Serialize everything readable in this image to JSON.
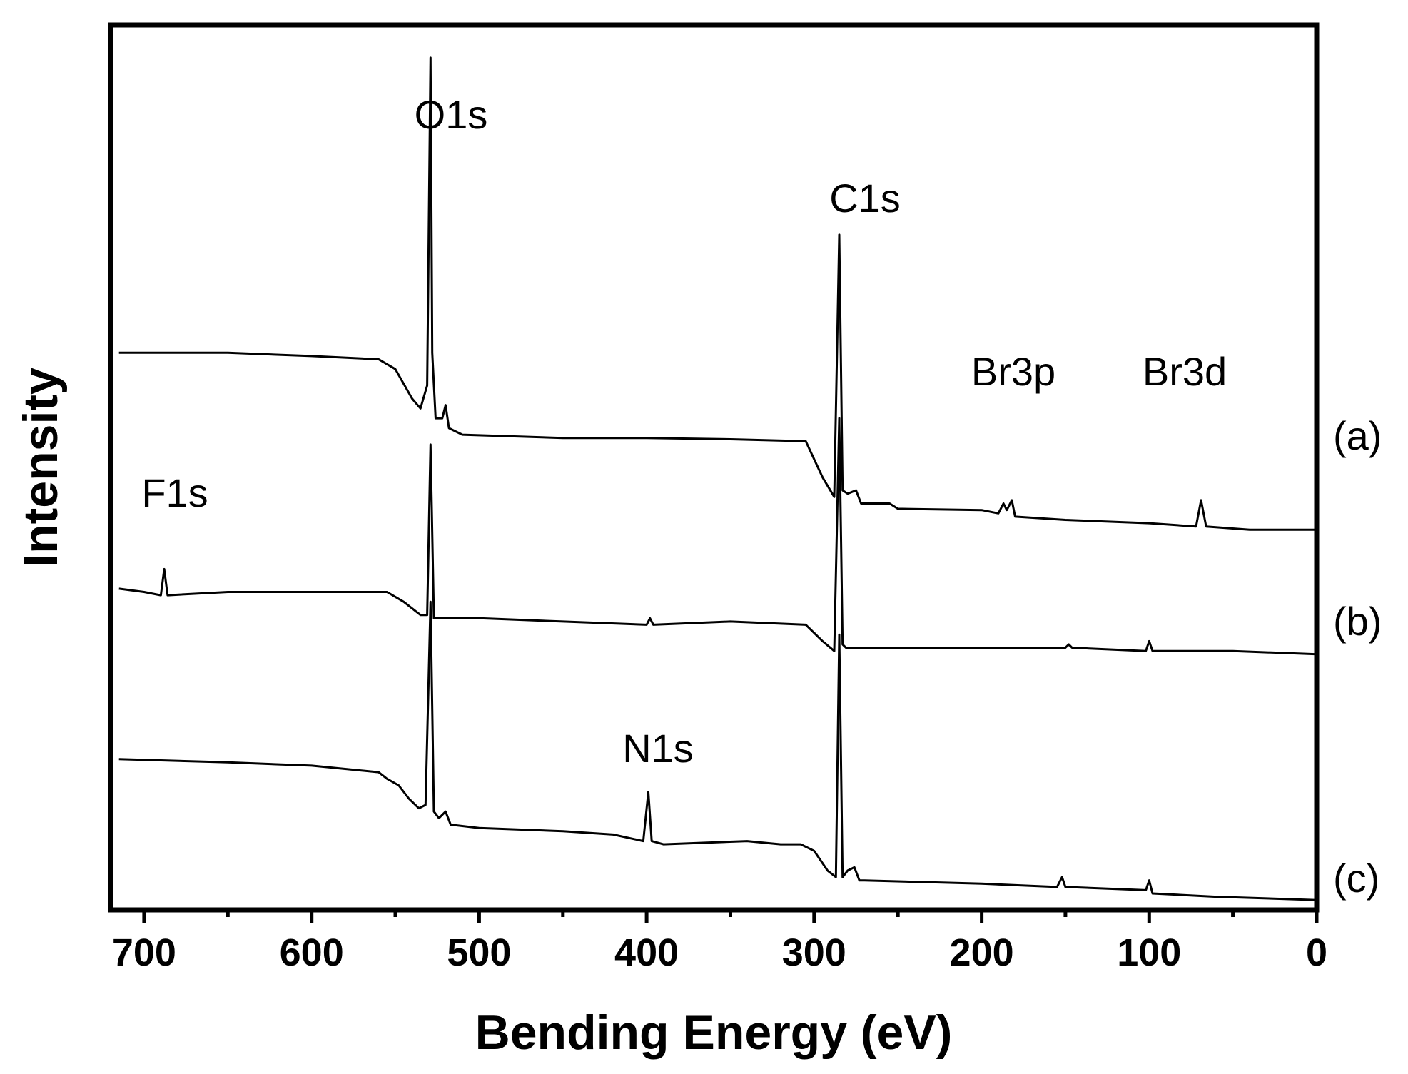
{
  "chart_data": {
    "type": "line",
    "xlabel": "Bending Energy (eV)",
    "ylabel": "Intensity",
    "xlim": [
      720,
      0
    ],
    "x_ticks": [
      "700",
      "600",
      "500",
      "400",
      "300",
      "200",
      "100",
      "0"
    ],
    "x_tick_values": [
      700,
      600,
      500,
      400,
      300,
      200,
      100,
      0
    ],
    "y_ticks_shown": false,
    "grid": false,
    "series": [
      {
        "name": "(a)",
        "points": [
          [
            715,
            9.0
          ],
          [
            650,
            9.0
          ],
          [
            600,
            8.95
          ],
          [
            560,
            8.9
          ],
          [
            550,
            8.75
          ],
          [
            540,
            8.3
          ],
          [
            535,
            8.15
          ],
          [
            531,
            8.5
          ],
          [
            529,
            13.5
          ],
          [
            528,
            9.0
          ],
          [
            526,
            8.0
          ],
          [
            522,
            8.0
          ],
          [
            520,
            8.2
          ],
          [
            518,
            7.85
          ],
          [
            510,
            7.75
          ],
          [
            450,
            7.7
          ],
          [
            400,
            7.7
          ],
          [
            350,
            7.68
          ],
          [
            305,
            7.65
          ],
          [
            295,
            7.1
          ],
          [
            288,
            6.8
          ],
          [
            285,
            10.8
          ],
          [
            283,
            6.9
          ],
          [
            280,
            6.85
          ],
          [
            275,
            6.9
          ],
          [
            272,
            6.7
          ],
          [
            265,
            6.7
          ],
          [
            255,
            6.7
          ],
          [
            250,
            6.62
          ],
          [
            200,
            6.6
          ],
          [
            190,
            6.55
          ],
          [
            187,
            6.7
          ],
          [
            185,
            6.6
          ],
          [
            182,
            6.75
          ],
          [
            180,
            6.5
          ],
          [
            150,
            6.45
          ],
          [
            100,
            6.4
          ],
          [
            72,
            6.35
          ],
          [
            69,
            6.75
          ],
          [
            66,
            6.35
          ],
          [
            40,
            6.3
          ],
          [
            0,
            6.3
          ]
        ]
      },
      {
        "name": "(b)",
        "points": [
          [
            715,
            5.4
          ],
          [
            700,
            5.35
          ],
          [
            690,
            5.3
          ],
          [
            688,
            5.7
          ],
          [
            686,
            5.3
          ],
          [
            650,
            5.35
          ],
          [
            600,
            5.35
          ],
          [
            570,
            5.35
          ],
          [
            555,
            5.35
          ],
          [
            545,
            5.2
          ],
          [
            535,
            5.0
          ],
          [
            531,
            5.0
          ],
          [
            529,
            7.6
          ],
          [
            527,
            4.95
          ],
          [
            520,
            4.95
          ],
          [
            500,
            4.95
          ],
          [
            450,
            4.9
          ],
          [
            400,
            4.85
          ],
          [
            398,
            4.95
          ],
          [
            396,
            4.85
          ],
          [
            350,
            4.9
          ],
          [
            305,
            4.85
          ],
          [
            295,
            4.6
          ],
          [
            288,
            4.45
          ],
          [
            285,
            8.0
          ],
          [
            283,
            4.55
          ],
          [
            281,
            4.5
          ],
          [
            270,
            4.5
          ],
          [
            150,
            4.5
          ],
          [
            148,
            4.55
          ],
          [
            146,
            4.5
          ],
          [
            102,
            4.45
          ],
          [
            100,
            4.6
          ],
          [
            98,
            4.45
          ],
          [
            50,
            4.45
          ],
          [
            0,
            4.4
          ]
        ]
      },
      {
        "name": "(c)",
        "points": [
          [
            715,
            2.8
          ],
          [
            650,
            2.75
          ],
          [
            600,
            2.7
          ],
          [
            560,
            2.6
          ],
          [
            555,
            2.5
          ],
          [
            548,
            2.4
          ],
          [
            542,
            2.2
          ],
          [
            536,
            2.05
          ],
          [
            532,
            2.1
          ],
          [
            529,
            5.2
          ],
          [
            527,
            2.0
          ],
          [
            524,
            1.9
          ],
          [
            520,
            2.0
          ],
          [
            517,
            1.8
          ],
          [
            500,
            1.75
          ],
          [
            450,
            1.7
          ],
          [
            420,
            1.65
          ],
          [
            402,
            1.55
          ],
          [
            399,
            2.3
          ],
          [
            397,
            1.55
          ],
          [
            390,
            1.5
          ],
          [
            340,
            1.55
          ],
          [
            320,
            1.5
          ],
          [
            308,
            1.5
          ],
          [
            300,
            1.4
          ],
          [
            292,
            1.1
          ],
          [
            287,
            1.0
          ],
          [
            285,
            4.7
          ],
          [
            283,
            1.0
          ],
          [
            280,
            1.1
          ],
          [
            276,
            1.15
          ],
          [
            273,
            0.95
          ],
          [
            270,
            0.95
          ],
          [
            200,
            0.9
          ],
          [
            155,
            0.85
          ],
          [
            152,
            1.0
          ],
          [
            150,
            0.85
          ],
          [
            102,
            0.8
          ],
          [
            100,
            0.95
          ],
          [
            98,
            0.75
          ],
          [
            60,
            0.7
          ],
          [
            0,
            0.65
          ]
        ]
      }
    ],
    "annotations": [
      {
        "text": "O1s",
        "x": 529
      },
      {
        "text": "C1s",
        "x": 285
      },
      {
        "text": "Br3p",
        "x": 182
      },
      {
        "text": "Br3d",
        "x": 69
      },
      {
        "text": "F1s",
        "x": 688
      },
      {
        "text": "N1s",
        "x": 399
      }
    ],
    "series_labels": [
      "(a)",
      "(b)",
      "(c)"
    ]
  }
}
